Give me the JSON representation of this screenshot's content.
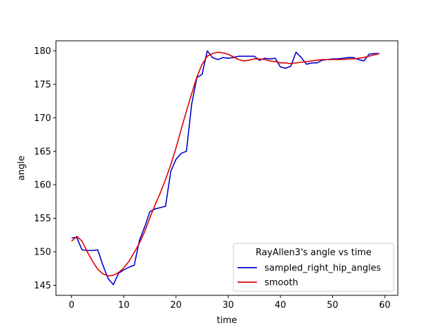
{
  "chart_data": {
    "type": "line",
    "xlabel": "time",
    "ylabel": "angle",
    "xlim": [
      -3,
      62.5
    ],
    "ylim": [
      143.5,
      181.5
    ],
    "xticks": [
      0,
      10,
      20,
      30,
      40,
      50,
      60
    ],
    "yticks": [
      145,
      150,
      155,
      160,
      165,
      170,
      175,
      180
    ],
    "grid": false,
    "legend": {
      "title": "RayAllen3's angle vs time",
      "placement": "lower-right"
    },
    "series": [
      {
        "name": "sampled_right_hip_angles",
        "color": "#0000cc",
        "x": [
          0,
          1,
          2,
          3,
          4,
          5,
          6,
          7,
          8,
          9,
          10,
          11,
          12,
          13,
          14,
          15,
          16,
          17,
          18,
          19,
          20,
          21,
          22,
          23,
          24,
          25,
          26,
          27,
          28,
          29,
          30,
          31,
          32,
          33,
          34,
          35,
          36,
          37,
          38,
          39,
          40,
          41,
          42,
          43,
          44,
          45,
          46,
          47,
          48,
          49,
          50,
          51,
          52,
          53,
          54,
          55,
          56,
          57,
          58,
          59
        ],
        "values": [
          152.1,
          152.1,
          150.3,
          150.2,
          150.2,
          150.3,
          148.0,
          146.0,
          145.1,
          146.8,
          147.3,
          147.7,
          148.0,
          151.7,
          153.7,
          156.0,
          156.4,
          156.6,
          156.8,
          162.0,
          163.8,
          164.7,
          165.0,
          172.0,
          176.0,
          176.5,
          180.0,
          179.0,
          178.7,
          179.0,
          178.9,
          179.0,
          179.2,
          179.2,
          179.2,
          179.2,
          178.6,
          178.9,
          178.8,
          178.9,
          177.6,
          177.4,
          177.7,
          179.8,
          179.0,
          178.0,
          178.2,
          178.2,
          178.6,
          178.7,
          178.8,
          178.8,
          178.9,
          179.0,
          179.0,
          178.7,
          178.5,
          179.5,
          179.6,
          179.6
        ]
      },
      {
        "name": "smooth",
        "color": "#dd0000",
        "x": [
          0,
          1,
          2,
          3,
          4,
          5,
          6,
          7,
          8,
          9,
          10,
          11,
          12,
          13,
          14,
          15,
          16,
          17,
          18,
          19,
          20,
          21,
          22,
          23,
          24,
          25,
          26,
          27,
          28,
          29,
          30,
          31,
          32,
          33,
          34,
          35,
          36,
          37,
          38,
          39,
          40,
          41,
          42,
          43,
          44,
          45,
          46,
          47,
          48,
          49,
          50,
          51,
          52,
          53,
          54,
          55,
          56,
          57,
          58,
          59
        ],
        "values": [
          151.6,
          152.3,
          151.6,
          150.0,
          148.6,
          147.4,
          146.7,
          146.4,
          146.5,
          146.9,
          147.6,
          148.6,
          149.9,
          151.3,
          153.0,
          155.1,
          157.0,
          158.8,
          160.8,
          163.0,
          165.5,
          168.3,
          171.0,
          173.6,
          176.1,
          178.0,
          179.2,
          179.6,
          179.8,
          179.7,
          179.5,
          179.1,
          178.7,
          178.5,
          178.6,
          178.8,
          178.8,
          178.7,
          178.5,
          178.4,
          178.2,
          178.2,
          178.1,
          178.2,
          178.3,
          178.4,
          178.5,
          178.6,
          178.7,
          178.7,
          178.7,
          178.7,
          178.7,
          178.8,
          178.8,
          178.9,
          179.0,
          179.2,
          179.4,
          179.6
        ]
      }
    ]
  }
}
